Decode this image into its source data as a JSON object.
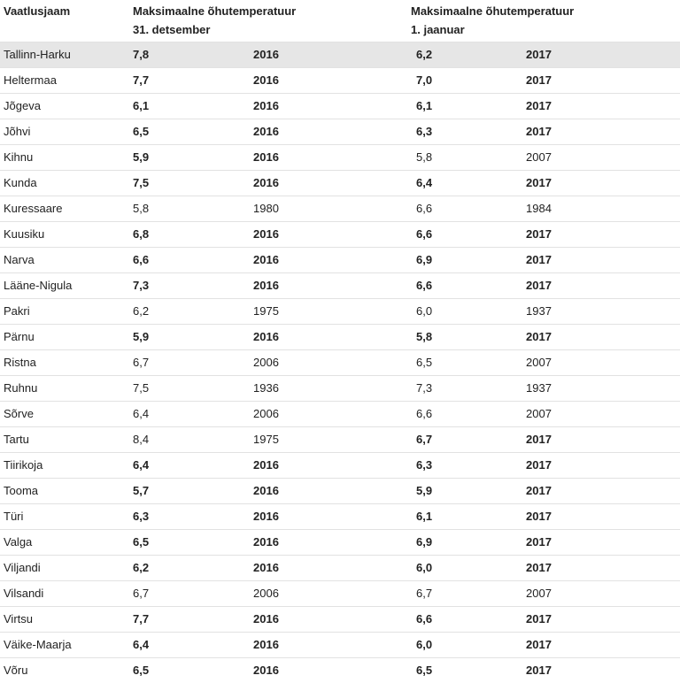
{
  "header": {
    "station": "Vaatlusjaam",
    "col1_line1": "Maksimaalne õhutemperatuur",
    "col1_line2": "31. detsember",
    "col2_line1": "Maksimaalne õhutemperatuur",
    "col2_line2": "1. jaanuar"
  },
  "rows": [
    {
      "name": "Tallinn-Harku",
      "t1": "7,8",
      "y1": "2016",
      "b1": true,
      "t2": "6,2",
      "y2": "2017",
      "b2": true,
      "highlight": true
    },
    {
      "name": "Heltermaa",
      "t1": "7,7",
      "y1": "2016",
      "b1": true,
      "t2": "7,0",
      "y2": "2017",
      "b2": true
    },
    {
      "name": "Jõgeva",
      "t1": "6,1",
      "y1": "2016",
      "b1": true,
      "t2": "6,1",
      "y2": "2017",
      "b2": true
    },
    {
      "name": "Jõhvi",
      "t1": "6,5",
      "y1": "2016",
      "b1": true,
      "t2": "6,3",
      "y2": "2017",
      "b2": true
    },
    {
      "name": "Kihnu",
      "t1": "5,9",
      "y1": "2016",
      "b1": true,
      "t2": "5,8",
      "y2": "2007",
      "b2": false
    },
    {
      "name": "Kunda",
      "t1": "7,5",
      "y1": "2016",
      "b1": true,
      "t2": "6,4",
      "y2": "2017",
      "b2": true
    },
    {
      "name": "Kuressaare",
      "t1": "5,8",
      "y1": "1980",
      "b1": false,
      "t2": "6,6",
      "y2": "1984",
      "b2": false
    },
    {
      "name": "Kuusiku",
      "t1": "6,8",
      "y1": "2016",
      "b1": true,
      "t2": "6,6",
      "y2": "2017",
      "b2": true
    },
    {
      "name": "Narva",
      "t1": "6,6",
      "y1": "2016",
      "b1": true,
      "t2": "6,9",
      "y2": "2017",
      "b2": true
    },
    {
      "name": "Lääne-Nigula",
      "t1": "7,3",
      "y1": "2016",
      "b1": true,
      "t2": "6,6",
      "y2": "2017",
      "b2": true
    },
    {
      "name": "Pakri",
      "t1": "6,2",
      "y1": "1975",
      "b1": false,
      "t2": "6,0",
      "y2": "1937",
      "b2": false
    },
    {
      "name": "Pärnu",
      "t1": "5,9",
      "y1": "2016",
      "b1": true,
      "t2": "5,8",
      "y2": "2017",
      "b2": true
    },
    {
      "name": "Ristna",
      "t1": "6,7",
      "y1": "2006",
      "b1": false,
      "t2": "6,5",
      "y2": "2007",
      "b2": false
    },
    {
      "name": "Ruhnu",
      "t1": "7,5",
      "y1": "1936",
      "b1": false,
      "t2": "7,3",
      "y2": "1937",
      "b2": false
    },
    {
      "name": "Sõrve",
      "t1": "6,4",
      "y1": "2006",
      "b1": false,
      "t2": "6,6",
      "y2": "2007",
      "b2": false
    },
    {
      "name": "Tartu",
      "t1": "8,4",
      "y1": "1975",
      "b1": false,
      "t2": "6,7",
      "y2": "2017",
      "b2": true
    },
    {
      "name": "Tiirikoja",
      "t1": "6,4",
      "y1": "2016",
      "b1": true,
      "t2": "6,3",
      "y2": "2017",
      "b2": true
    },
    {
      "name": "Tooma",
      "t1": "5,7",
      "y1": "2016",
      "b1": true,
      "t2": "5,9",
      "y2": "2017",
      "b2": true
    },
    {
      "name": "Türi",
      "t1": "6,3",
      "y1": "2016",
      "b1": true,
      "t2": "6,1",
      "y2": "2017",
      "b2": true
    },
    {
      "name": "Valga",
      "t1": "6,5",
      "y1": "2016",
      "b1": true,
      "t2": "6,9",
      "y2": "2017",
      "b2": true
    },
    {
      "name": "Viljandi",
      "t1": "6,2",
      "y1": "2016",
      "b1": true,
      "t2": "6,0",
      "y2": "2017",
      "b2": true
    },
    {
      "name": "Vilsandi",
      "t1": "6,7",
      "y1": "2006",
      "b1": false,
      "t2": "6,7",
      "y2": "2007",
      "b2": false
    },
    {
      "name": "Virtsu",
      "t1": "7,7",
      "y1": "2016",
      "b1": true,
      "t2": "6,6",
      "y2": "2017",
      "b2": true
    },
    {
      "name": "Väike-Maarja",
      "t1": "6,4",
      "y1": "2016",
      "b1": true,
      "t2": "6,0",
      "y2": "2017",
      "b2": true
    },
    {
      "name": "Võru",
      "t1": "6,5",
      "y1": "2016",
      "b1": true,
      "t2": "6,5",
      "y2": "2017",
      "b2": true
    }
  ],
  "colors": {
    "highlight_row": "#e6e6e6",
    "row_border": "#e2e2e2",
    "text": "#222222"
  }
}
